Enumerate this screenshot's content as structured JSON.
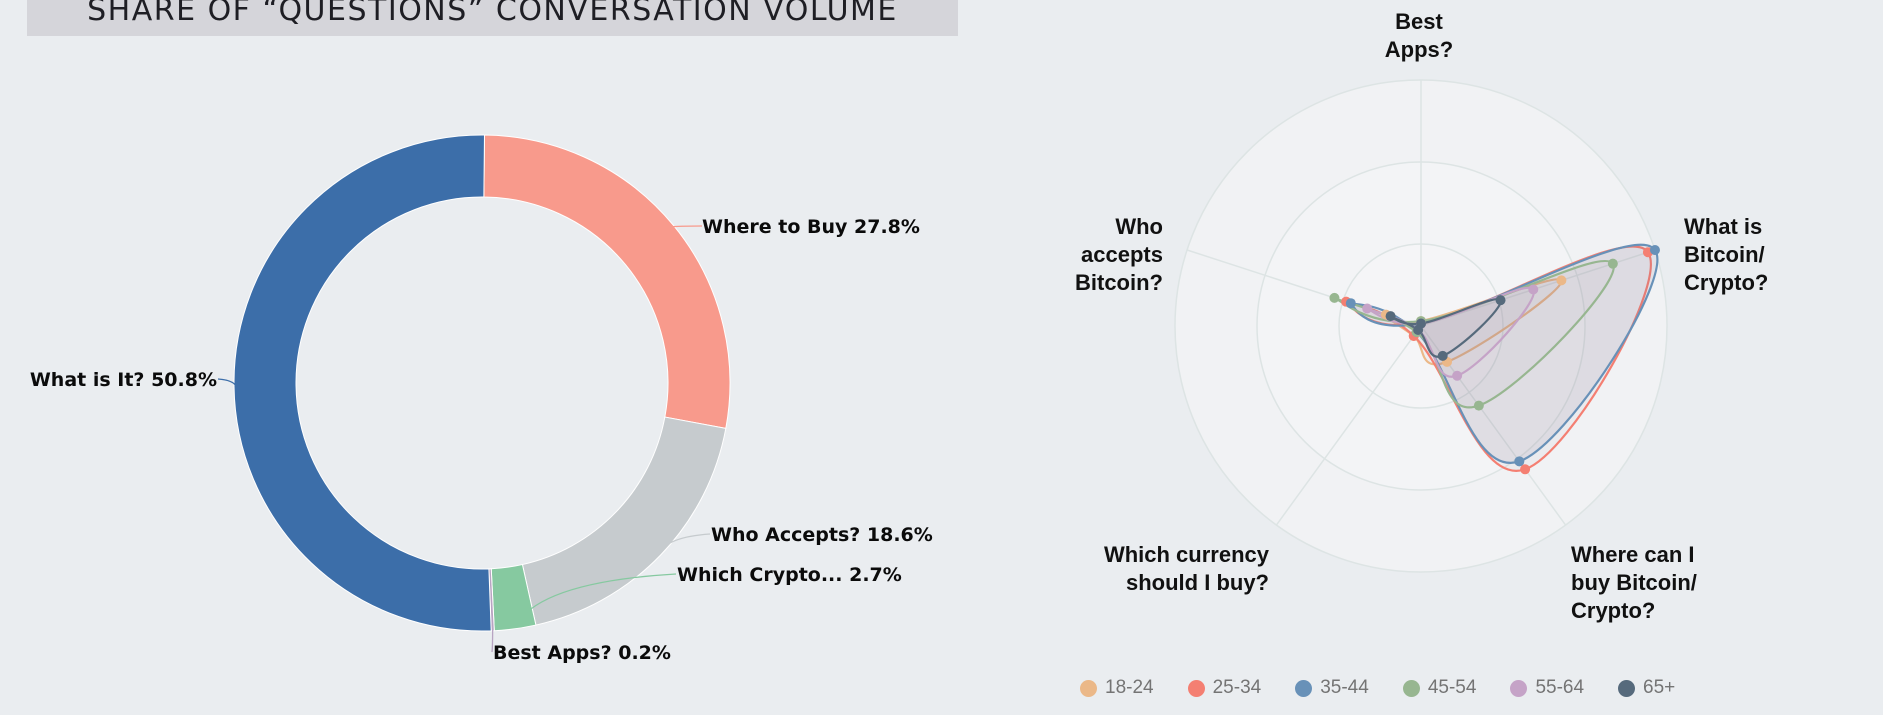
{
  "header": {
    "title": "SHARE OF “QUESTIONS” CONVERSATION VOLUME"
  },
  "colors": {
    "what_is_it": "#3c6ea9",
    "where_to_buy": "#f89a8c",
    "who_accepts": "#c6cbce",
    "which_crypto": "#86c9a0",
    "best_apps": "#b8a4c2",
    "18-24": "#ebb888",
    "25-34": "#f47f72",
    "35-44": "#6891b8",
    "45-54": "#97b690",
    "55-64": "#c5a3c7",
    "65+": "#566a7c"
  },
  "chart_data": [
    {
      "type": "pie",
      "variant": "donut",
      "title": "SHARE OF “QUESTIONS” CONVERSATION VOLUME",
      "slices": [
        {
          "key": "where_to_buy",
          "label": "Where to Buy 27.8%",
          "value": 27.8
        },
        {
          "key": "who_accepts",
          "label": "Who Accepts? 18.6%",
          "value": 18.6
        },
        {
          "key": "which_crypto",
          "label": "Which Crypto... 2.7%",
          "value": 2.7
        },
        {
          "key": "best_apps",
          "label": "Best Apps? 0.2%",
          "value": 0.2
        },
        {
          "key": "what_is_it",
          "label": "What is It? 50.8%",
          "value": 50.8
        }
      ]
    },
    {
      "type": "radar",
      "axes": [
        {
          "label": [
            "Best",
            "Apps?"
          ]
        },
        {
          "label": [
            "What is",
            "Bitcoin/",
            "Crypto?"
          ]
        },
        {
          "label": [
            "Where can I",
            "buy Bitcoin/",
            "Crypto?"
          ]
        },
        {
          "label": [
            "Which currency",
            "should I buy?"
          ]
        },
        {
          "label": [
            "Who",
            "accepts",
            "Bitcoin?"
          ]
        }
      ],
      "range": [
        0,
        1
      ],
      "grid_levels": 3,
      "fill_series": "35-44",
      "series": [
        {
          "name": "18-24",
          "values": [
            0.02,
            0.6,
            0.18,
            0.05,
            0.15
          ]
        },
        {
          "name": "25-34",
          "values": [
            0.01,
            0.97,
            0.72,
            0.05,
            0.32
          ]
        },
        {
          "name": "35-44",
          "values": [
            0.01,
            1.0,
            0.68,
            0.03,
            0.3
          ]
        },
        {
          "name": "45-54",
          "values": [
            0.02,
            0.82,
            0.4,
            0.03,
            0.37
          ]
        },
        {
          "name": "55-64",
          "values": [
            0.01,
            0.48,
            0.25,
            0.02,
            0.23
          ]
        },
        {
          "name": "65+",
          "values": [
            0.01,
            0.34,
            0.15,
            0.02,
            0.13
          ]
        }
      ],
      "legend": [
        "18-24",
        "25-34",
        "35-44",
        "45-54",
        "55-64",
        "65+"
      ],
      "legend_position": "bottom"
    }
  ]
}
